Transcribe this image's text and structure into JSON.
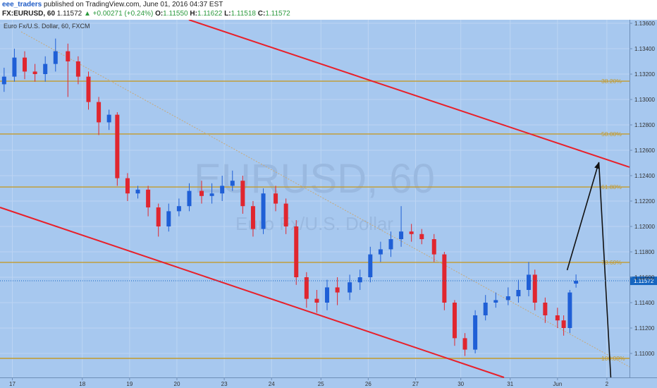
{
  "header": {
    "author": "eee_traders",
    "published": "published on TradingView.com, June 01, 2016 04:37 EST",
    "symbol": "FX:EURUSD, 60",
    "last": "1.11572",
    "change": "▲ +0.00271 (+0.24%)",
    "open_label": "O:",
    "open": "1.11550",
    "high_label": "H:",
    "high": "1.11622",
    "low_label": "L:",
    "low": "1.11518",
    "close_label": "C:",
    "close": "1.11572"
  },
  "chart_data": {
    "type": "candlestick",
    "legend_text": "Euro Fx/U.S. Dollar, 60, FXCM",
    "watermark": "EURUSD, 60",
    "watermark_subtitle": "Euro Fx/U.S. Dollar",
    "up_color": "#1f5fd6",
    "down_color": "#e0262f",
    "grid": true,
    "xlim": [
      0,
      306
    ],
    "ylim": [
      1.10811,
      1.13628
    ],
    "xticks": [
      {
        "value": 6,
        "label": "17"
      },
      {
        "value": 40,
        "label": "18"
      },
      {
        "value": 63,
        "label": "19"
      },
      {
        "value": 86,
        "label": "20"
      },
      {
        "value": 109,
        "label": "23"
      },
      {
        "value": 132,
        "label": "24"
      },
      {
        "value": 156,
        "label": "25"
      },
      {
        "value": 179,
        "label": "26"
      },
      {
        "value": 202,
        "label": "27"
      },
      {
        "value": 224,
        "label": "30"
      },
      {
        "value": 248,
        "label": "31"
      },
      {
        "value": 271,
        "label": "Jun"
      },
      {
        "value": 295,
        "label": "2"
      }
    ],
    "yticks": [
      {
        "value": 1.136,
        "label": "1.13600"
      },
      {
        "value": 1.134,
        "label": "1.13400"
      },
      {
        "value": 1.132,
        "label": "1.13200"
      },
      {
        "value": 1.13,
        "label": "1.13000"
      },
      {
        "value": 1.128,
        "label": "1.12800"
      },
      {
        "value": 1.126,
        "label": "1.12600"
      },
      {
        "value": 1.124,
        "label": "1.12400"
      },
      {
        "value": 1.122,
        "label": "1.12200"
      },
      {
        "value": 1.12,
        "label": "1.12000"
      },
      {
        "value": 1.118,
        "label": "1.11800"
      },
      {
        "value": 1.116,
        "label": "1.11600"
      },
      {
        "value": 1.114,
        "label": "1.11400"
      },
      {
        "value": 1.112,
        "label": "1.11200"
      },
      {
        "value": 1.11,
        "label": "1.11000"
      }
    ],
    "last_price": {
      "value": 1.11572,
      "label": "1.11572"
    },
    "x": [
      2,
      7,
      12,
      17,
      22,
      27,
      33,
      38,
      43,
      48,
      53,
      57,
      62,
      67,
      72,
      77,
      82,
      87,
      92,
      98,
      103,
      108,
      113,
      118,
      123,
      128,
      134,
      139,
      144,
      149,
      154,
      159,
      164,
      170,
      175,
      180,
      185,
      190,
      195,
      200,
      205,
      211,
      216,
      221,
      226,
      231,
      236,
      241,
      247,
      252,
      257,
      260,
      265,
      271,
      274,
      277,
      280
    ],
    "open": [
      1.1312,
      1.1318,
      1.1333,
      1.1322,
      1.132,
      1.1328,
      1.1338,
      1.133,
      1.1318,
      1.1298,
      1.1282,
      1.1288,
      1.1238,
      1.1226,
      1.1229,
      1.1215,
      1.12,
      1.1212,
      1.1216,
      1.1228,
      1.1224,
      1.1226,
      1.1232,
      1.1236,
      1.1216,
      1.1198,
      1.1226,
      1.1218,
      1.12,
      1.116,
      1.1143,
      1.114,
      1.1152,
      1.1148,
      1.1156,
      1.116,
      1.1178,
      1.1182,
      1.119,
      1.1196,
      1.1194,
      1.119,
      1.1178,
      1.114,
      1.1112,
      1.1103,
      1.113,
      1.114,
      1.1142,
      1.1145,
      1.115,
      1.1162,
      1.114,
      1.113,
      1.1126,
      1.112,
      1.1155
    ],
    "high": [
      1.1325,
      1.134,
      1.1338,
      1.1328,
      1.1334,
      1.1348,
      1.1344,
      1.1334,
      1.1322,
      1.1302,
      1.1292,
      1.129,
      1.1242,
      1.1232,
      1.1232,
      1.1218,
      1.1218,
      1.1222,
      1.1234,
      1.1236,
      1.1234,
      1.124,
      1.1244,
      1.124,
      1.122,
      1.123,
      1.1232,
      1.1222,
      1.1205,
      1.1164,
      1.115,
      1.1158,
      1.116,
      1.1162,
      1.1166,
      1.1184,
      1.1188,
      1.1196,
      1.1216,
      1.1202,
      1.1198,
      1.1194,
      1.118,
      1.1142,
      1.1116,
      1.1134,
      1.1146,
      1.1148,
      1.1152,
      1.1158,
      1.1172,
      1.1166,
      1.1144,
      1.1136,
      1.113,
      1.115,
      1.11622
    ],
    "low": [
      1.1306,
      1.1314,
      1.1316,
      1.1314,
      1.1314,
      1.1322,
      1.1302,
      1.1312,
      1.1292,
      1.1272,
      1.1276,
      1.1232,
      1.122,
      1.1222,
      1.1208,
      1.1192,
      1.1196,
      1.1208,
      1.1212,
      1.1218,
      1.1218,
      1.122,
      1.1228,
      1.121,
      1.1192,
      1.1194,
      1.1212,
      1.1194,
      1.1154,
      1.1136,
      1.1132,
      1.1134,
      1.1138,
      1.1142,
      1.115,
      1.1156,
      1.1172,
      1.1176,
      1.1184,
      1.1188,
      1.1186,
      1.1172,
      1.1134,
      1.1106,
      1.1098,
      1.11,
      1.1126,
      1.1136,
      1.1138,
      1.114,
      1.1145,
      1.1134,
      1.1124,
      1.112,
      1.1114,
      1.1116,
      1.11518
    ],
    "close": [
      1.1318,
      1.1333,
      1.1322,
      1.132,
      1.1328,
      1.1338,
      1.133,
      1.1318,
      1.1298,
      1.1282,
      1.1288,
      1.1238,
      1.1226,
      1.1229,
      1.1215,
      1.12,
      1.1212,
      1.1216,
      1.1228,
      1.1224,
      1.1226,
      1.1232,
      1.1236,
      1.1216,
      1.1198,
      1.1226,
      1.1218,
      1.12,
      1.116,
      1.1143,
      1.114,
      1.1152,
      1.1148,
      1.1156,
      1.116,
      1.1178,
      1.1182,
      1.119,
      1.1196,
      1.1194,
      1.119,
      1.1178,
      1.114,
      1.1112,
      1.1103,
      1.113,
      1.114,
      1.1142,
      1.1145,
      1.115,
      1.1162,
      1.114,
      1.113,
      1.1126,
      1.112,
      1.1148,
      1.11572
    ],
    "fib_color": "#c39a2c",
    "fib_levels": [
      {
        "label": "38.20%",
        "value": 1.13144
      },
      {
        "label": "50.00%",
        "value": 1.12728
      },
      {
        "label": "61.80%",
        "value": 1.12311
      },
      {
        "label": "78.60%",
        "value": 1.11717
      },
      {
        "label": "100.00%",
        "value": 1.10961
      }
    ],
    "channel_color": "#e8202a",
    "channels": [
      {
        "x": [
          91.8,
          306
        ],
        "y": [
          1.13628,
          1.12467
        ]
      },
      {
        "x": [
          0,
          245
        ],
        "y": [
          1.1215,
          1.10811
        ]
      }
    ],
    "trendline": {
      "x": [
        10.3,
        306
      ],
      "y": [
        1.13533,
        1.10894
      ],
      "color": "#c8a877"
    },
    "arrow": {
      "x": [
        275.7,
        291.1,
        296.9
      ],
      "y": [
        1.11656,
        1.12506,
        1.10811
      ],
      "color": "#111111"
    }
  }
}
